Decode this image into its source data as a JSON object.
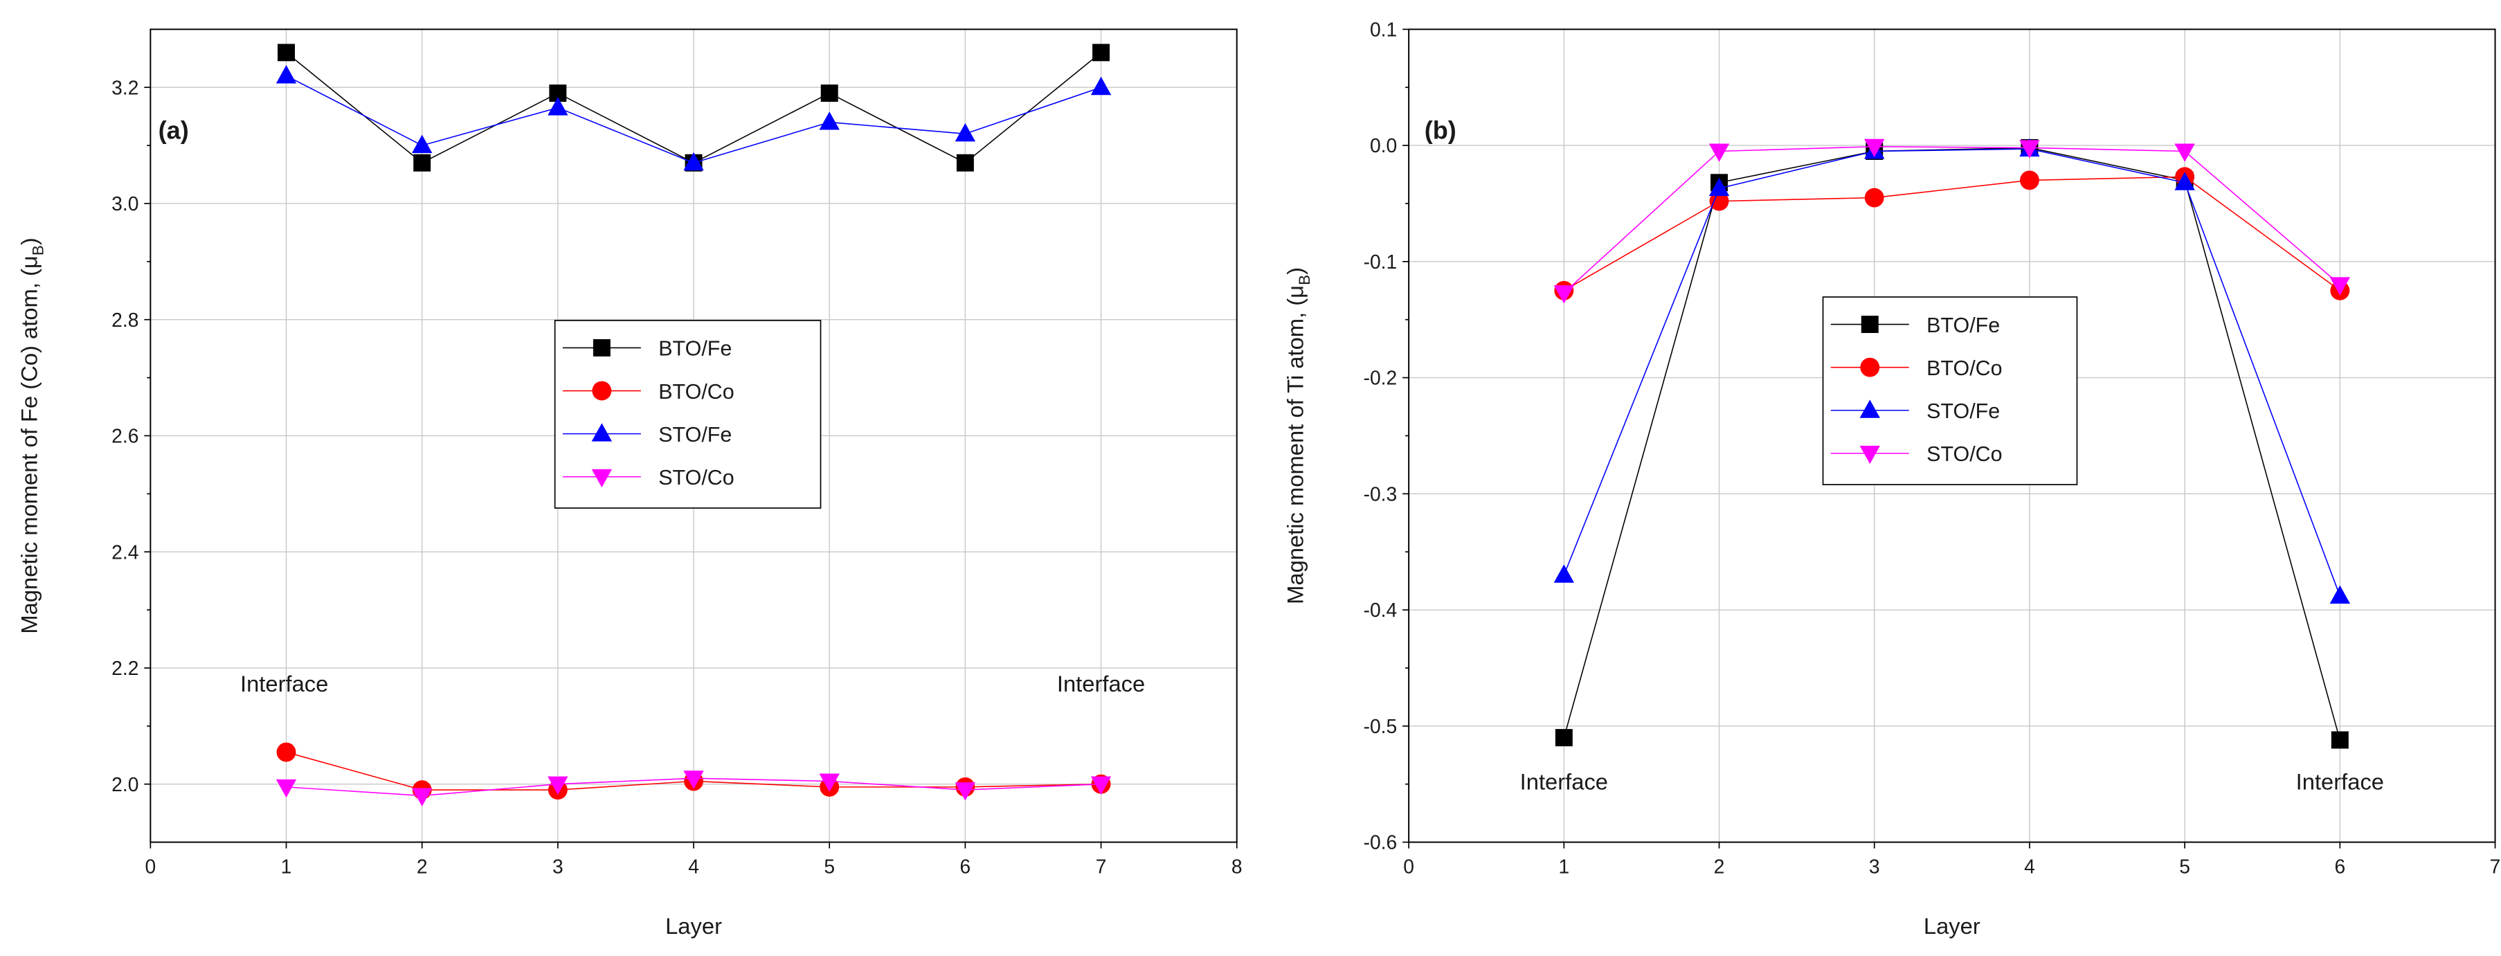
{
  "chart_data": [
    {
      "type": "line",
      "panel_label": "(a)",
      "xlabel": "Layer",
      "ylabel": "Magnetic moment of Fe (Co) atom, (μ",
      "ylabel_sub": "B",
      "ylabel_close": ")",
      "xlim": [
        0,
        8
      ],
      "ylim": [
        1.9,
        3.3
      ],
      "xticks": [
        0,
        1,
        2,
        3,
        4,
        5,
        6,
        7,
        8
      ],
      "yticks": [
        2.0,
        2.2,
        2.4,
        2.6,
        2.8,
        3.0,
        3.2
      ],
      "ytick_labels": [
        "2.0",
        "2.2",
        "2.4",
        "2.6",
        "2.8",
        "3.0",
        "3.2"
      ],
      "grid": true,
      "legend_position": "center",
      "x": [
        1,
        2,
        3,
        4,
        5,
        6,
        7
      ],
      "series": [
        {
          "name": "BTO/Fe",
          "color": "#000000",
          "marker": "square",
          "values": [
            3.26,
            3.07,
            3.19,
            3.07,
            3.19,
            3.07,
            3.26
          ]
        },
        {
          "name": "BTO/Co",
          "color": "#ff0000",
          "marker": "circle",
          "values": [
            2.055,
            1.99,
            1.99,
            2.005,
            1.995,
            1.995,
            2.0
          ]
        },
        {
          "name": "STO/Fe",
          "color": "#0000ff",
          "marker": "triangle-up",
          "values": [
            3.22,
            3.1,
            3.165,
            3.07,
            3.14,
            3.12,
            3.2
          ]
        },
        {
          "name": "STO/Co",
          "color": "#ff00ff",
          "marker": "triangle-down",
          "values": [
            1.995,
            1.98,
            2.0,
            2.01,
            2.005,
            1.99,
            2.0
          ]
        }
      ],
      "annotations": [
        {
          "text": "Interface",
          "x": 1,
          "y": 2.13
        },
        {
          "text": "Interface",
          "x": 7,
          "y": 2.13
        }
      ]
    },
    {
      "type": "line",
      "panel_label": "(b)",
      "xlabel": "Layer",
      "ylabel": "Magnetic moment of Ti atom, (μ",
      "ylabel_sub": "B",
      "ylabel_close": ")",
      "xlim": [
        0,
        7
      ],
      "ylim": [
        -0.6,
        0.1
      ],
      "xticks": [
        0,
        1,
        2,
        3,
        4,
        5,
        6,
        7
      ],
      "yticks": [
        0.1,
        0.0,
        -0.1,
        -0.2,
        -0.3,
        -0.4,
        -0.5,
        -0.6
      ],
      "ytick_labels": [
        "0.1",
        "0.0",
        "-0.1",
        "-0.2",
        "-0.3",
        "-0.4",
        "-0.5",
        "-0.6"
      ],
      "grid": true,
      "legend_position": "center",
      "x": [
        1,
        2,
        3,
        4,
        5,
        6
      ],
      "series": [
        {
          "name": "BTO/Fe",
          "color": "#000000",
          "marker": "square",
          "values": [
            -0.51,
            -0.032,
            -0.005,
            -0.002,
            -0.03,
            -0.512
          ]
        },
        {
          "name": "BTO/Co",
          "color": "#ff0000",
          "marker": "circle",
          "values": [
            -0.125,
            -0.048,
            -0.045,
            -0.03,
            -0.027,
            -0.125
          ]
        },
        {
          "name": "STO/Fe",
          "color": "#0000ff",
          "marker": "triangle-up",
          "values": [
            -0.37,
            -0.037,
            -0.005,
            -0.003,
            -0.032,
            -0.388
          ]
        },
        {
          "name": "STO/Co",
          "color": "#ff00ff",
          "marker": "triangle-down",
          "values": [
            -0.127,
            -0.005,
            -0.001,
            -0.002,
            -0.005,
            -0.12
          ]
        }
      ],
      "annotations": [
        {
          "text": "Interface",
          "x": 1,
          "y": -0.565
        },
        {
          "text": "Interface",
          "x": 6,
          "y": -0.565
        }
      ]
    }
  ]
}
